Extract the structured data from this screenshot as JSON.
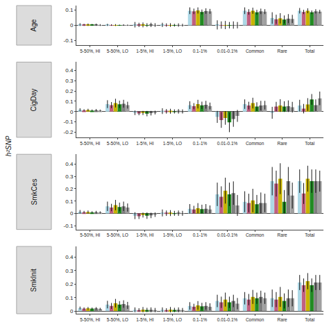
{
  "chart_data": [
    {
      "type": "bar",
      "title": "Age",
      "categories": [
        "5-50%, HI",
        "5-50%, LO",
        "1-5%, HI",
        "1-5%, LO",
        "0.1-1%",
        "0.01-0.1%",
        "Common",
        "Rare",
        "Total"
      ],
      "series": [
        {
          "color": "#ADD8E6",
          "values": [
            0.005,
            0.003,
            0.004,
            0.003,
            0.096,
            0.003,
            0.096,
            0.048,
            0.096
          ],
          "errors": [
            0.009,
            0.007,
            0.018,
            0.014,
            0.022,
            0.03,
            0.022,
            0.038,
            0.018
          ]
        },
        {
          "color": "#C06080",
          "values": [
            0.003,
            0.002,
            0.003,
            0.002,
            0.092,
            0.002,
            0.088,
            0.04,
            0.088
          ],
          "errors": [
            0.007,
            0.005,
            0.014,
            0.011,
            0.018,
            0.024,
            0.018,
            0.03,
            0.014
          ]
        },
        {
          "color": "#C8B400",
          "values": [
            0.004,
            0.002,
            0.003,
            0.002,
            0.098,
            0.002,
            0.096,
            0.046,
            0.096
          ],
          "errors": [
            0.008,
            0.006,
            0.016,
            0.012,
            0.02,
            0.027,
            0.02,
            0.034,
            0.016
          ]
        },
        {
          "color": "#228B22",
          "values": [
            0.003,
            0.001,
            0.002,
            0.001,
            0.088,
            0.001,
            0.086,
            0.038,
            0.086
          ],
          "errors": [
            0.006,
            0.004,
            0.012,
            0.009,
            0.016,
            0.021,
            0.016,
            0.027,
            0.012
          ]
        },
        {
          "color": "#808080",
          "values": [
            0.004,
            0.002,
            0.003,
            0.002,
            0.094,
            0.002,
            0.092,
            0.044,
            0.092
          ],
          "errors": [
            0.007,
            0.005,
            0.014,
            0.011,
            0.018,
            0.024,
            0.018,
            0.03,
            0.014
          ]
        },
        {
          "color": "#A0A0A0",
          "values": [
            0.002,
            0.001,
            0.002,
            0.001,
            0.092,
            0.001,
            0.09,
            0.042,
            0.09
          ],
          "errors": [
            0.006,
            0.004,
            0.012,
            0.009,
            0.016,
            0.021,
            0.016,
            0.027,
            0.012
          ]
        }
      ],
      "ylim": [
        -0.13,
        0.13
      ],
      "yticks": [
        -0.1,
        0,
        0.1
      ],
      "grid": false
    },
    {
      "type": "bar",
      "title": "CigDay",
      "ylabel": "h²SNP",
      "categories": [
        "5-50%, HI",
        "5-50%, LO",
        "1-5%, HI",
        "1-5%, LO",
        "0.1-1%",
        "0.01-0.1%",
        "Common",
        "Rare",
        "Total"
      ],
      "series": [
        {
          "color": "#ADD8E6",
          "values": [
            0.018,
            0.072,
            -0.012,
            0.004,
            0.062,
            -0.052,
            0.072,
            -0.012,
            0.058
          ],
          "errors": [
            0.014,
            0.038,
            0.022,
            0.028,
            0.038,
            0.058,
            0.046,
            0.058,
            0.056
          ]
        },
        {
          "color": "#C06080",
          "values": [
            0.012,
            0.062,
            -0.018,
            0.002,
            0.052,
            -0.082,
            0.058,
            0.048,
            0.028
          ],
          "errors": [
            0.011,
            0.03,
            0.018,
            0.022,
            0.03,
            0.076,
            0.037,
            0.046,
            0.046
          ]
        },
        {
          "color": "#C8B400",
          "values": [
            0.015,
            0.082,
            -0.014,
            0.003,
            0.072,
            -0.062,
            0.082,
            0.058,
            0.068
          ],
          "errors": [
            0.012,
            0.042,
            0.02,
            0.024,
            0.042,
            0.066,
            0.052,
            0.062,
            0.062
          ]
        },
        {
          "color": "#228B22",
          "values": [
            0.01,
            0.07,
            -0.02,
            0.001,
            0.06,
            -0.105,
            0.048,
            0.048,
            0.118
          ],
          "errors": [
            0.01,
            0.036,
            0.026,
            0.02,
            0.036,
            0.095,
            0.042,
            0.052,
            0.052
          ]
        },
        {
          "color": "#808080",
          "values": [
            0.013,
            0.076,
            -0.016,
            0.002,
            0.066,
            -0.072,
            0.058,
            0.052,
            0.062
          ],
          "errors": [
            0.011,
            0.038,
            0.022,
            0.022,
            0.038,
            0.076,
            0.046,
            0.056,
            0.056
          ]
        },
        {
          "color": "#A0A0A0",
          "values": [
            0.01,
            0.062,
            -0.01,
            0.001,
            0.054,
            -0.042,
            0.062,
            0.042,
            0.128
          ],
          "errors": [
            0.009,
            0.033,
            0.018,
            0.02,
            0.033,
            0.058,
            0.042,
            0.052,
            0.066
          ]
        }
      ],
      "ylim": [
        -0.25,
        0.48
      ],
      "yticks": [
        -0.2,
        -0.1,
        0,
        0.1,
        0.2,
        0.3,
        0.4
      ],
      "grid": false
    },
    {
      "type": "bar",
      "title": "SmkCes",
      "categories": [
        "5-50%, HI",
        "5-50%, LO",
        "1-5%, HI",
        "1-5%, LO",
        "0.1-1%",
        "0.01-0.1%",
        "Common",
        "Rare",
        "Total"
      ],
      "series": [
        {
          "color": "#ADD8E6",
          "values": [
            0.014,
            0.058,
            -0.018,
            0.004,
            0.038,
            0.155,
            0.095,
            0.262,
            0.262
          ],
          "errors": [
            0.014,
            0.038,
            0.028,
            0.028,
            0.038,
            0.095,
            0.085,
            0.115,
            0.095
          ]
        },
        {
          "color": "#C06080",
          "values": [
            0.01,
            0.048,
            -0.023,
            0.002,
            0.032,
            0.135,
            0.085,
            0.242,
            0.162
          ],
          "errors": [
            0.011,
            0.03,
            0.022,
            0.022,
            0.03,
            0.085,
            0.075,
            0.105,
            0.085
          ]
        },
        {
          "color": "#C8B400",
          "values": [
            0.012,
            0.068,
            -0.013,
            0.003,
            0.042,
            0.185,
            0.105,
            0.282,
            0.282
          ],
          "errors": [
            0.012,
            0.042,
            0.02,
            0.024,
            0.042,
            0.105,
            0.095,
            0.125,
            0.105
          ]
        },
        {
          "color": "#228B22",
          "values": [
            0.008,
            0.052,
            -0.018,
            0.001,
            0.035,
            0.155,
            0.075,
            0.095,
            0.262
          ],
          "errors": [
            0.01,
            0.036,
            0.026,
            0.02,
            0.036,
            0.095,
            0.075,
            0.095,
            0.095
          ]
        },
        {
          "color": "#808080",
          "values": [
            0.01,
            0.058,
            -0.016,
            0.002,
            0.038,
            0.165,
            0.085,
            0.262,
            0.262
          ],
          "errors": [
            0.011,
            0.038,
            0.022,
            0.022,
            0.038,
            0.095,
            0.085,
            0.115,
            0.095
          ]
        },
        {
          "color": "#A0A0A0",
          "values": [
            0.008,
            0.048,
            -0.01,
            0.001,
            0.032,
            0.065,
            0.085,
            0.145,
            0.262
          ],
          "errors": [
            0.009,
            0.033,
            0.018,
            0.02,
            0.033,
            0.085,
            0.075,
            0.105,
            0.085
          ]
        }
      ],
      "ylim": [
        -0.13,
        0.48
      ],
      "yticks": [
        -0.1,
        0,
        0.1,
        0.2,
        0.3,
        0.4
      ],
      "grid": false
    },
    {
      "type": "bar",
      "title": "SmkInit",
      "categories": [
        "5-50%, HI",
        "5-50%, LO",
        "1-5%, HI",
        "1-5%, LO",
        "0.1-1%",
        "0.01-0.1%",
        "Common",
        "Rare",
        "Total"
      ],
      "series": [
        {
          "color": "#ADD8E6",
          "values": [
            0.022,
            0.048,
            0.009,
            0.009,
            0.038,
            0.075,
            0.095,
            0.095,
            0.212
          ],
          "errors": [
            0.011,
            0.028,
            0.018,
            0.018,
            0.028,
            0.046,
            0.046,
            0.065,
            0.056
          ]
        },
        {
          "color": "#C06080",
          "values": [
            0.018,
            0.038,
            0.007,
            0.007,
            0.032,
            0.065,
            0.085,
            0.085,
            0.192
          ],
          "errors": [
            0.009,
            0.022,
            0.014,
            0.014,
            0.022,
            0.042,
            0.042,
            0.056,
            0.05
          ]
        },
        {
          "color": "#C8B400",
          "values": [
            0.02,
            0.058,
            0.01,
            0.01,
            0.042,
            0.085,
            0.105,
            0.105,
            0.222
          ],
          "errors": [
            0.01,
            0.032,
            0.02,
            0.02,
            0.032,
            0.052,
            0.052,
            0.074,
            0.06
          ]
        },
        {
          "color": "#228B22",
          "values": [
            0.018,
            0.048,
            0.008,
            0.008,
            0.035,
            0.065,
            0.095,
            0.075,
            0.192
          ],
          "errors": [
            0.008,
            0.026,
            0.016,
            0.016,
            0.026,
            0.042,
            0.042,
            0.056,
            0.05
          ]
        },
        {
          "color": "#808080",
          "values": [
            0.02,
            0.052,
            0.009,
            0.009,
            0.038,
            0.075,
            0.105,
            0.095,
            0.212
          ],
          "errors": [
            0.009,
            0.028,
            0.018,
            0.018,
            0.028,
            0.046,
            0.046,
            0.065,
            0.056
          ]
        },
        {
          "color": "#A0A0A0",
          "values": [
            0.016,
            0.042,
            0.007,
            0.007,
            0.032,
            0.055,
            0.095,
            0.095,
            0.212
          ],
          "errors": [
            0.008,
            0.026,
            0.016,
            0.016,
            0.026,
            0.042,
            0.042,
            0.06,
            0.056
          ]
        }
      ],
      "ylim": [
        -0.02,
        0.48
      ],
      "yticks": [
        0,
        0.1,
        0.2,
        0.3,
        0.4
      ],
      "grid": false
    }
  ]
}
